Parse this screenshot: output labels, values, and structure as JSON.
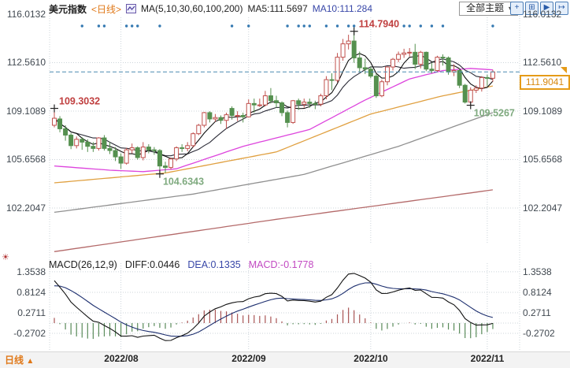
{
  "header": {
    "title": "美元指数",
    "period_tag": "<日线>",
    "ma_settings": "MA(5,10,30,60,100,200)",
    "ma5_label": "MA5:111.5697",
    "ma10_label": "MA10:111.284",
    "theme_dropdown": "全部主题",
    "dropdown_caret": "▼",
    "toolbar": {
      "move": "+",
      "layout": "⊞",
      "play": "▶",
      "export": "↦"
    }
  },
  "axes": {
    "main_left": [
      "116.0132",
      "112.5610",
      "109.1089",
      "105.6568",
      "102.2047"
    ],
    "main_right": [
      "116.0132",
      "112.5610",
      "109.1089",
      "105.6568",
      "102.2047"
    ],
    "macd_left": [
      "1.3538",
      "0.8124",
      "0.2711",
      "-0.2702"
    ],
    "macd_right": [
      "1.3538",
      "0.8124",
      "0.2711",
      "-0.2702"
    ],
    "dates": [
      "2022/08",
      "2022/09",
      "2022/10",
      "2022/11"
    ]
  },
  "price_box": {
    "value": "111.9041"
  },
  "macd_header": {
    "name": "MACD(26,12,9)",
    "diff": "DIFF:0.0446",
    "dea": "DEA:0.1335",
    "macd": "MACD:-0.1778"
  },
  "bottom_bar": {
    "period": "日线",
    "arrow": "▲"
  },
  "chart_data": {
    "type": "candlestick+macd",
    "symbol": "美元指数",
    "period": "日线",
    "main": {
      "ylim": [
        99.5,
        116.2
      ],
      "gridline_values": [
        116.0132,
        112.561,
        109.1089,
        105.6568,
        102.2047
      ],
      "current_price": 111.9041,
      "month_start_indices": [
        12,
        35,
        57,
        78
      ],
      "event_dot_indices": [
        5,
        8,
        9,
        13,
        14,
        15,
        19,
        32,
        35,
        42,
        44,
        45,
        46,
        49,
        51,
        53,
        54,
        63,
        64,
        66,
        68,
        70,
        79
      ],
      "annotations": [
        {
          "index": 0,
          "value": 109.3032,
          "label": "109.3032",
          "type": "high",
          "color": "#c04040"
        },
        {
          "index": 19,
          "value": 104.6343,
          "label": "104.6343",
          "type": "low",
          "color": "#7faa7f"
        },
        {
          "index": 54,
          "value": 114.794,
          "label": "114.7940",
          "type": "high",
          "color": "#c04040"
        },
        {
          "index": 75,
          "value": 109.5267,
          "label": "109.5267",
          "type": "low",
          "color": "#7faa7f"
        }
      ],
      "candles": [
        [
          108.1,
          109.3,
          107.95,
          108.6
        ],
        [
          108.55,
          108.75,
          107.6,
          107.85
        ],
        [
          107.85,
          108.1,
          107.0,
          107.4
        ],
        [
          107.4,
          107.55,
          106.4,
          106.65
        ],
        [
          106.65,
          107.3,
          106.45,
          107.1
        ],
        [
          107.1,
          107.25,
          106.35,
          106.9
        ],
        [
          106.9,
          107.1,
          106.2,
          106.6
        ],
        [
          106.6,
          106.9,
          106.2,
          106.45
        ],
        [
          106.45,
          107.25,
          106.3,
          107.2
        ],
        [
          107.2,
          107.4,
          106.3,
          106.45
        ],
        [
          106.45,
          106.9,
          106.05,
          106.3
        ],
        [
          106.3,
          106.55,
          105.55,
          105.85
        ],
        [
          105.85,
          106.1,
          105.0,
          105.4
        ],
        [
          105.4,
          106.5,
          105.3,
          106.35
        ],
        [
          106.35,
          106.8,
          106.1,
          106.5
        ],
        [
          106.5,
          106.6,
          105.65,
          105.8
        ],
        [
          105.8,
          106.9,
          105.6,
          106.55
        ],
        [
          106.55,
          106.75,
          106.1,
          106.35
        ],
        [
          106.35,
          106.55,
          106.0,
          106.3
        ],
        [
          106.3,
          106.4,
          104.63,
          105.2
        ],
        [
          105.2,
          105.5,
          104.7,
          105.1
        ],
        [
          105.1,
          105.8,
          104.95,
          105.7
        ],
        [
          105.7,
          106.6,
          105.55,
          106.5
        ],
        [
          106.5,
          106.75,
          106.2,
          106.45
        ],
        [
          106.45,
          106.9,
          106.25,
          106.65
        ],
        [
          106.65,
          107.6,
          106.5,
          107.5
        ],
        [
          107.5,
          108.2,
          107.4,
          108.1
        ],
        [
          108.1,
          109.05,
          107.95,
          109.0
        ],
        [
          109.0,
          109.1,
          108.3,
          108.55
        ],
        [
          108.55,
          108.9,
          108.35,
          108.65
        ],
        [
          108.65,
          108.8,
          108.2,
          108.45
        ],
        [
          108.45,
          109.0,
          107.85,
          108.85
        ],
        [
          109.3,
          109.45,
          108.5,
          108.8
        ],
        [
          108.8,
          109.1,
          108.4,
          108.8
        ],
        [
          108.8,
          109.0,
          108.3,
          108.7
        ],
        [
          108.7,
          109.95,
          108.65,
          109.65
        ],
        [
          109.65,
          110.0,
          109.0,
          109.55
        ],
        [
          109.55,
          110.0,
          109.4,
          109.55
        ],
        [
          109.55,
          110.55,
          109.45,
          110.2
        ],
        [
          110.2,
          110.75,
          109.65,
          109.85
        ],
        [
          109.85,
          110.2,
          109.35,
          109.7
        ],
        [
          109.7,
          109.8,
          108.75,
          109.0
        ],
        [
          109.0,
          109.15,
          107.95,
          108.3
        ],
        [
          108.3,
          109.9,
          108.2,
          109.85
        ],
        [
          109.85,
          110.0,
          109.2,
          109.6
        ],
        [
          109.6,
          110.0,
          109.35,
          109.75
        ],
        [
          109.75,
          110.0,
          109.35,
          109.65
        ],
        [
          109.65,
          109.85,
          109.25,
          109.6
        ],
        [
          109.6,
          110.35,
          109.45,
          110.2
        ],
        [
          110.2,
          111.6,
          109.95,
          111.35
        ],
        [
          111.35,
          111.8,
          110.6,
          111.3
        ],
        [
          111.3,
          113.25,
          111.15,
          112.95
        ],
        [
          112.95,
          114.25,
          112.7,
          113.9
        ],
        [
          113.9,
          114.55,
          113.5,
          114.1
        ],
        [
          114.1,
          114.79,
          112.55,
          112.9
        ],
        [
          112.9,
          113.35,
          111.9,
          112.2
        ],
        [
          112.2,
          112.85,
          111.75,
          112.1
        ],
        [
          112.1,
          112.3,
          111.45,
          111.6
        ],
        [
          111.6,
          111.75,
          110.05,
          110.2
        ],
        [
          110.2,
          111.35,
          110.1,
          111.2
        ],
        [
          111.2,
          112.3,
          110.95,
          112.25
        ],
        [
          112.25,
          112.9,
          112.0,
          112.8
        ],
        [
          112.8,
          113.35,
          112.6,
          113.15
        ],
        [
          113.15,
          113.55,
          112.9,
          113.25
        ],
        [
          113.25,
          113.6,
          113.0,
          113.3
        ],
        [
          113.3,
          113.9,
          112.1,
          112.45
        ],
        [
          112.45,
          113.4,
          112.15,
          113.3
        ],
        [
          113.3,
          113.35,
          111.95,
          112.1
        ],
        [
          112.1,
          112.55,
          111.8,
          112.0
        ],
        [
          112.0,
          113.05,
          111.9,
          112.95
        ],
        [
          112.95,
          113.15,
          112.35,
          112.9
        ],
        [
          112.9,
          113.0,
          111.7,
          111.9
        ],
        [
          111.9,
          112.45,
          111.6,
          112.0
        ],
        [
          112.0,
          112.15,
          110.75,
          110.95
        ],
        [
          110.95,
          111.05,
          109.65,
          109.75
        ],
        [
          109.75,
          110.8,
          109.53,
          110.6
        ],
        [
          110.6,
          110.95,
          110.4,
          110.75
        ],
        [
          110.75,
          111.6,
          110.5,
          111.5
        ],
        [
          111.5,
          111.7,
          110.9,
          111.45
        ],
        [
          111.45,
          112.05,
          111.2,
          111.9
        ]
      ],
      "overlays": {
        "ma30": {
          "color": "#dd44dd",
          "points": [
            [
              0,
              105.2
            ],
            [
              10,
              104.9
            ],
            [
              16,
              104.8
            ],
            [
              22,
              105.0
            ],
            [
              28,
              105.8
            ],
            [
              34,
              106.6
            ],
            [
              46,
              107.8
            ],
            [
              56,
              109.9
            ],
            [
              64,
              111.4
            ],
            [
              70,
              112.0
            ],
            [
              75,
              112.15
            ],
            [
              79,
              112.05
            ]
          ]
        },
        "ma60": {
          "color": "#e0a040",
          "points": [
            [
              0,
              104.0
            ],
            [
              20,
              104.7
            ],
            [
              40,
              106.2
            ],
            [
              57,
              108.9
            ],
            [
              70,
              110.2
            ],
            [
              79,
              110.9
            ]
          ]
        },
        "ma100": {
          "color": "#909090",
          "points": [
            [
              0,
              101.9
            ],
            [
              25,
              103.2
            ],
            [
              45,
              104.6
            ],
            [
              62,
              106.6
            ],
            [
              79,
              109.0
            ]
          ]
        },
        "ma200": {
          "color": "#b46a6a",
          "points": [
            [
              0,
              99.1
            ],
            [
              40,
              101.4
            ],
            [
              79,
              103.5
            ]
          ]
        }
      }
    },
    "macd": {
      "params": "(26,12,9)",
      "diff": 0.0446,
      "dea": 0.1335,
      "macd": -0.1778,
      "gridline_values": [
        1.3538,
        0.8124,
        0.2711,
        -0.2702
      ],
      "ylim": [
        -0.75,
        1.65
      ]
    },
    "colors": {
      "up": "#c0504d",
      "down": "#55904f",
      "bar_up": "#a85454",
      "bar_down": "#598a59",
      "price_line": "#4a8ab0",
      "event_dot": "#3579b1",
      "grid": "#ccd4da",
      "ma5": "#111111",
      "ma10": "#2a2a36",
      "macd_diff_line": "#111111",
      "macd_dea_line": "#1c2e6e"
    }
  }
}
